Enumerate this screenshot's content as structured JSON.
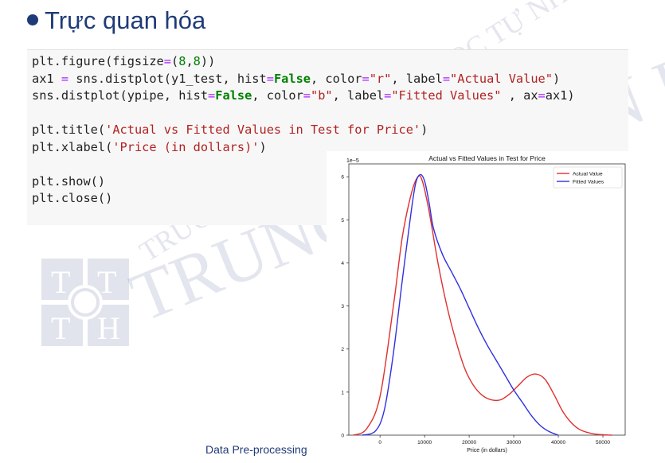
{
  "slide": {
    "title": "Trực quan hóa",
    "footer": "Data Pre-processing",
    "watermark": {
      "logo_letters": [
        "T",
        "T",
        "T",
        "H"
      ],
      "arc_text": "TRƯỜNG ĐẠI HỌC KHOA HỌC TỰ NHIÊN",
      "main_text": "TRUNG TÂM TIN HỌC"
    }
  },
  "code": {
    "lines": [
      "plt.figure(figsize=(8,8))",
      "ax1 = sns.distplot(y1_test, hist=False, color=\"r\", label=\"Actual Value\")",
      "sns.distplot(ypipe, hist=False, color=\"b\", label=\"Fitted Values\" , ax=ax1)",
      "",
      "plt.title('Actual vs Fitted Values in Test for Price')",
      "plt.xlabel('Price (in dollars)')",
      "",
      "plt.show()",
      "plt.close()"
    ]
  },
  "chart_data": {
    "type": "line",
    "title": "Actual vs Fitted Values in Test for Price",
    "xlabel": "Price (in dollars)",
    "ylabel": "",
    "y_scale_label": "1e−5",
    "xlim": [
      -7000,
      55000
    ],
    "ylim": [
      0,
      6.3
    ],
    "xticks": [
      0,
      10000,
      20000,
      30000,
      40000,
      50000
    ],
    "yticks": [
      0,
      1,
      2,
      3,
      4,
      5,
      6
    ],
    "legend_position": "top-right",
    "series": [
      {
        "name": "Actual Value",
        "color": "#e03030",
        "x": [
          -6000,
          -3000,
          0,
          3000,
          5000,
          7000,
          8500,
          9500,
          11000,
          13000,
          15000,
          17000,
          19000,
          21000,
          23000,
          25000,
          27000,
          29000,
          31000,
          33000,
          35000,
          37000,
          39000,
          41000,
          43000,
          45000,
          48000,
          52000
        ],
        "y": [
          0,
          0.15,
          0.9,
          3.0,
          4.6,
          5.6,
          6.0,
          5.9,
          5.2,
          4.0,
          3.0,
          2.2,
          1.55,
          1.15,
          0.92,
          0.82,
          0.82,
          0.95,
          1.15,
          1.35,
          1.42,
          1.3,
          0.95,
          0.55,
          0.28,
          0.12,
          0.03,
          0
        ]
      },
      {
        "name": "Fitted Values",
        "color": "#3030e0",
        "x": [
          -4000,
          -1000,
          1000,
          3000,
          5000,
          7000,
          8000,
          9000,
          10000,
          11000,
          12000,
          14000,
          16000,
          18000,
          20000,
          22000,
          24000,
          26000,
          28000,
          30000,
          32000,
          34000,
          36000,
          38000,
          40000
        ],
        "y": [
          0,
          0.1,
          0.6,
          1.9,
          3.6,
          5.2,
          5.85,
          6.05,
          5.9,
          5.4,
          4.8,
          4.2,
          3.8,
          3.4,
          2.95,
          2.5,
          2.1,
          1.75,
          1.4,
          1.05,
          0.75,
          0.45,
          0.22,
          0.08,
          0
        ]
      }
    ]
  }
}
